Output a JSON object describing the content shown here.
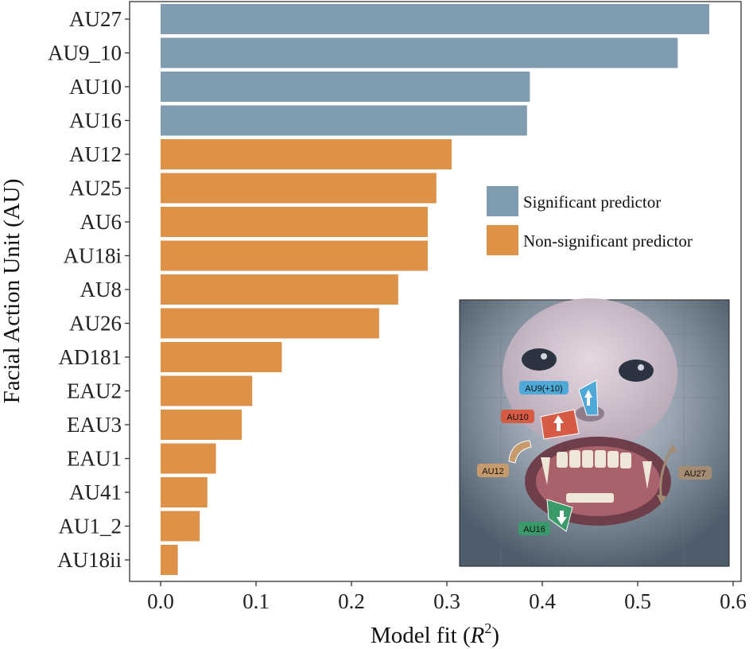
{
  "chart_data": {
    "type": "bar",
    "orientation": "horizontal",
    "title": "",
    "xlabel": "Model fit (",
    "xlabel_var": "R",
    "xlabel_sup": "2",
    "xlabel_close": ")",
    "ylabel": "Facial Action Unit (AU)",
    "xlim": [
      0.0,
      0.6
    ],
    "xticks": [
      0.0,
      0.1,
      0.2,
      0.3,
      0.4,
      0.5,
      0.6
    ],
    "xtick_labels": [
      "0.0",
      "0.1",
      "0.2",
      "0.3",
      "0.4",
      "0.5",
      "0.6"
    ],
    "categories": [
      "AU27",
      "AU9_10",
      "AU10",
      "AU16",
      "AU12",
      "AU25",
      "AU6",
      "AU18i",
      "AU8",
      "AU26",
      "AD181",
      "EAU2",
      "EAU3",
      "EAU1",
      "AU41",
      "AU1_2",
      "AU18ii"
    ],
    "values": [
      0.575,
      0.542,
      0.387,
      0.384,
      0.305,
      0.289,
      0.28,
      0.28,
      0.249,
      0.229,
      0.127,
      0.096,
      0.085,
      0.058,
      0.049,
      0.041,
      0.018
    ],
    "significant": [
      true,
      true,
      true,
      true,
      false,
      false,
      false,
      false,
      false,
      false,
      false,
      false,
      false,
      false,
      false,
      false,
      false
    ],
    "legend": [
      {
        "label": "Significant predictor",
        "color": "#7f9cb1"
      },
      {
        "label": "Non-significant predictor",
        "color": "#de9248"
      }
    ],
    "legend_position": "right"
  },
  "inset": {
    "labels": {
      "au9": "AU9(+10)",
      "au10": "AU10",
      "au12": "AU12",
      "au16": "AU16",
      "au27": "AU27"
    }
  },
  "colors": {
    "significant": "#7f9cb1",
    "nonsignificant": "#de9248",
    "axis": "#333333"
  }
}
